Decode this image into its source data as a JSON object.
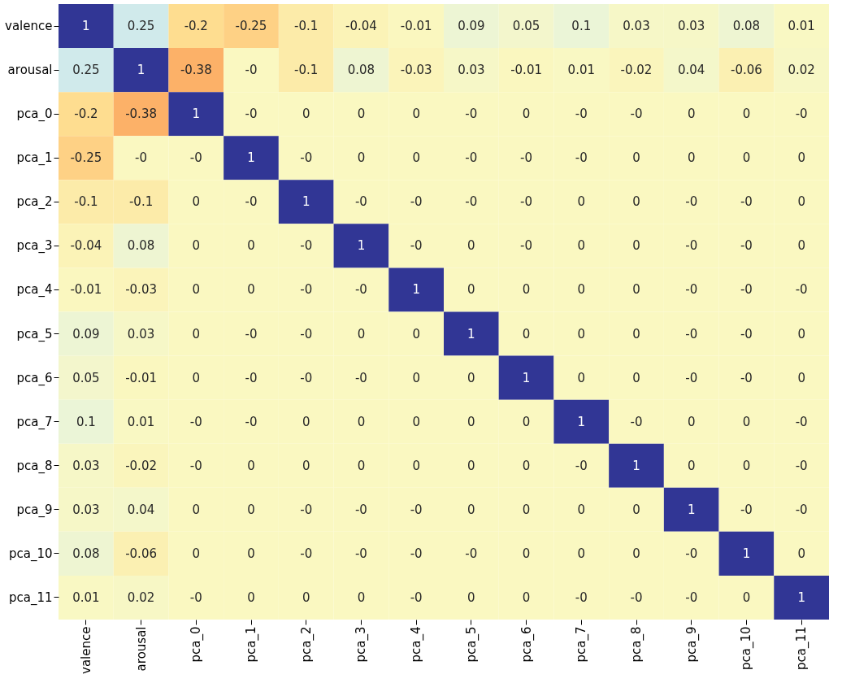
{
  "chart_data": {
    "type": "heatmap",
    "categories": [
      "valence",
      "arousal",
      "pca_0",
      "pca_1",
      "pca_2",
      "pca_3",
      "pca_4",
      "pca_5",
      "pca_6",
      "pca_7",
      "pca_8",
      "pca_9",
      "pca_10",
      "pca_11"
    ],
    "y_categories": [
      "valence",
      "arousal",
      "pca_0",
      "pca_1",
      "pca_2",
      "pca_3",
      "pca_4",
      "pca_5",
      "pca_6",
      "pca_7",
      "pca_8",
      "pca_9",
      "pca_10",
      "pca_11"
    ],
    "cells": [
      [
        1,
        0.25,
        -0.2,
        -0.25,
        -0.1,
        -0.04,
        -0.01,
        0.09,
        0.05,
        0.1,
        0.03,
        0.03,
        0.08,
        0.01
      ],
      [
        0.25,
        1,
        -0.38,
        0,
        -0.1,
        0.08,
        -0.03,
        0.03,
        -0.01,
        0.01,
        -0.02,
        0.04,
        -0.06,
        0.02
      ],
      [
        -0.2,
        -0.38,
        1,
        0,
        0,
        0,
        0,
        0,
        0,
        0,
        0,
        0,
        0,
        0
      ],
      [
        -0.25,
        0,
        0,
        1,
        0,
        0,
        0,
        0,
        0,
        0,
        0,
        0,
        0,
        0
      ],
      [
        -0.1,
        -0.1,
        0,
        0,
        1,
        0,
        0,
        0,
        0,
        0,
        0,
        0,
        0,
        0
      ],
      [
        -0.04,
        0.08,
        0,
        0,
        0,
        1,
        0,
        0,
        0,
        0,
        0,
        0,
        0,
        0
      ],
      [
        -0.01,
        -0.03,
        0,
        0,
        0,
        0,
        1,
        0,
        0,
        0,
        0,
        0,
        0,
        0
      ],
      [
        0.09,
        0.03,
        0,
        0,
        0,
        0,
        0,
        1,
        0,
        0,
        0,
        0,
        0,
        0
      ],
      [
        0.05,
        -0.01,
        0,
        0,
        0,
        0,
        0,
        0,
        1,
        0,
        0,
        0,
        0,
        0
      ],
      [
        0.1,
        0.01,
        0,
        0,
        0,
        0,
        0,
        0,
        0,
        1,
        0,
        0,
        0,
        0
      ],
      [
        0.03,
        -0.02,
        0,
        0,
        0,
        0,
        0,
        0,
        0,
        0,
        1,
        0,
        0,
        0
      ],
      [
        0.03,
        0.04,
        0,
        0,
        0,
        0,
        0,
        0,
        0,
        0,
        0,
        1,
        0,
        0
      ],
      [
        0.08,
        -0.06,
        0,
        0,
        0,
        0,
        0,
        0,
        0,
        0,
        0,
        0,
        1,
        0
      ],
      [
        0.01,
        0.02,
        0,
        0,
        0,
        0,
        0,
        0,
        0,
        0,
        0,
        0,
        0,
        1
      ]
    ],
    "cell_labels": [
      [
        "1",
        "0.25",
        "-0.2",
        "-0.25",
        "-0.1",
        "-0.04",
        "-0.01",
        "0.09",
        "0.05",
        "0.1",
        "0.03",
        "0.03",
        "0.08",
        "0.01"
      ],
      [
        "0.25",
        "1",
        "-0.38",
        "-0",
        "-0.1",
        "0.08",
        "-0.03",
        "0.03",
        "-0.01",
        "0.01",
        "-0.02",
        "0.04",
        "-0.06",
        "0.02"
      ],
      [
        "-0.2",
        "-0.38",
        "1",
        "-0",
        "0",
        "0",
        "0",
        "-0",
        "0",
        "-0",
        "-0",
        "0",
        "0",
        "-0"
      ],
      [
        "-0.25",
        "-0",
        "-0",
        "1",
        "-0",
        "0",
        "0",
        "-0",
        "-0",
        "-0",
        "0",
        "0",
        "0",
        "0"
      ],
      [
        "-0.1",
        "-0.1",
        "0",
        "-0",
        "1",
        "-0",
        "-0",
        "-0",
        "-0",
        "0",
        "0",
        "-0",
        "-0",
        "0"
      ],
      [
        "-0.04",
        "0.08",
        "0",
        "0",
        "-0",
        "1",
        "-0",
        "0",
        "-0",
        "0",
        "0",
        "-0",
        "-0",
        "0"
      ],
      [
        "-0.01",
        "-0.03",
        "0",
        "0",
        "-0",
        "-0",
        "1",
        "0",
        "0",
        "0",
        "0",
        "-0",
        "-0",
        "-0"
      ],
      [
        "0.09",
        "0.03",
        "0",
        "-0",
        "-0",
        "0",
        "0",
        "1",
        "0",
        "0",
        "0",
        "-0",
        "-0",
        "0"
      ],
      [
        "0.05",
        "-0.01",
        "0",
        "-0",
        "-0",
        "-0",
        "0",
        "0",
        "1",
        "0",
        "0",
        "-0",
        "-0",
        "0"
      ],
      [
        "0.1",
        "0.01",
        "-0",
        "-0",
        "0",
        "0",
        "0",
        "0",
        "0",
        "1",
        "-0",
        "0",
        "0",
        "-0"
      ],
      [
        "0.03",
        "-0.02",
        "-0",
        "0",
        "0",
        "0",
        "0",
        "0",
        "0",
        "-0",
        "1",
        "0",
        "0",
        "-0"
      ],
      [
        "0.03",
        "0.04",
        "0",
        "0",
        "-0",
        "-0",
        "-0",
        "0",
        "0",
        "0",
        "0",
        "1",
        "-0",
        "-0"
      ],
      [
        "0.08",
        "-0.06",
        "0",
        "0",
        "-0",
        "-0",
        "-0",
        "-0",
        "0",
        "0",
        "0",
        "-0",
        "1",
        "0"
      ],
      [
        "0.01",
        "0.02",
        "-0",
        "0",
        "0",
        "0",
        "-0",
        "0",
        "0",
        "-0",
        "-0",
        "-0",
        "0",
        "1"
      ]
    ]
  }
}
